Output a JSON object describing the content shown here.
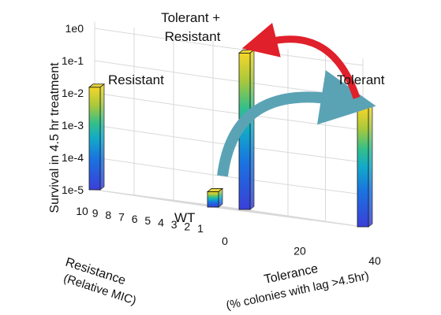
{
  "chart_data": {
    "type": "bar3d",
    "title": "",
    "zlabel": "Survival in 4.5 hr treatment",
    "xlabel_lines": [
      "Resistance",
      "(Relative MIC)"
    ],
    "ylabel_lines": [
      "Tolerance",
      "(% colonies with lag >4.5hr)"
    ],
    "x_ticks": [
      "10",
      "9",
      "8",
      "7",
      "6",
      "5",
      "4",
      "3",
      "2",
      "1"
    ],
    "y_ticks": [
      "0",
      "20",
      "40"
    ],
    "z_ticks": [
      "1e-5",
      "1e-4",
      "1e-3",
      "1e-2",
      "1e-1",
      "1e0"
    ],
    "zlim": [
      1e-05,
      1.0
    ],
    "z_scale": "log",
    "colormap": "parula",
    "grid": true,
    "bars": [
      {
        "label": "WT",
        "resistance": 1,
        "tolerance": 0,
        "survival": 3e-05
      },
      {
        "label": "Resistant",
        "resistance": 10,
        "tolerance": 0,
        "survival": 0.015
      },
      {
        "label": "Tolerant",
        "resistance": 1,
        "tolerance": 40,
        "survival": 0.05
      },
      {
        "label": "Tolerant + Resistant",
        "label_lines": [
          "Tolerant +",
          "Resistant"
        ],
        "resistance": 10,
        "tolerance": 40,
        "survival": 0.7
      }
    ],
    "arrows": [
      {
        "from": "WT",
        "to": "Tolerant",
        "color": "#5aa3b5"
      },
      {
        "from": "Tolerant",
        "to": "Tolerant + Resistant",
        "color": "#e0202a"
      }
    ]
  }
}
